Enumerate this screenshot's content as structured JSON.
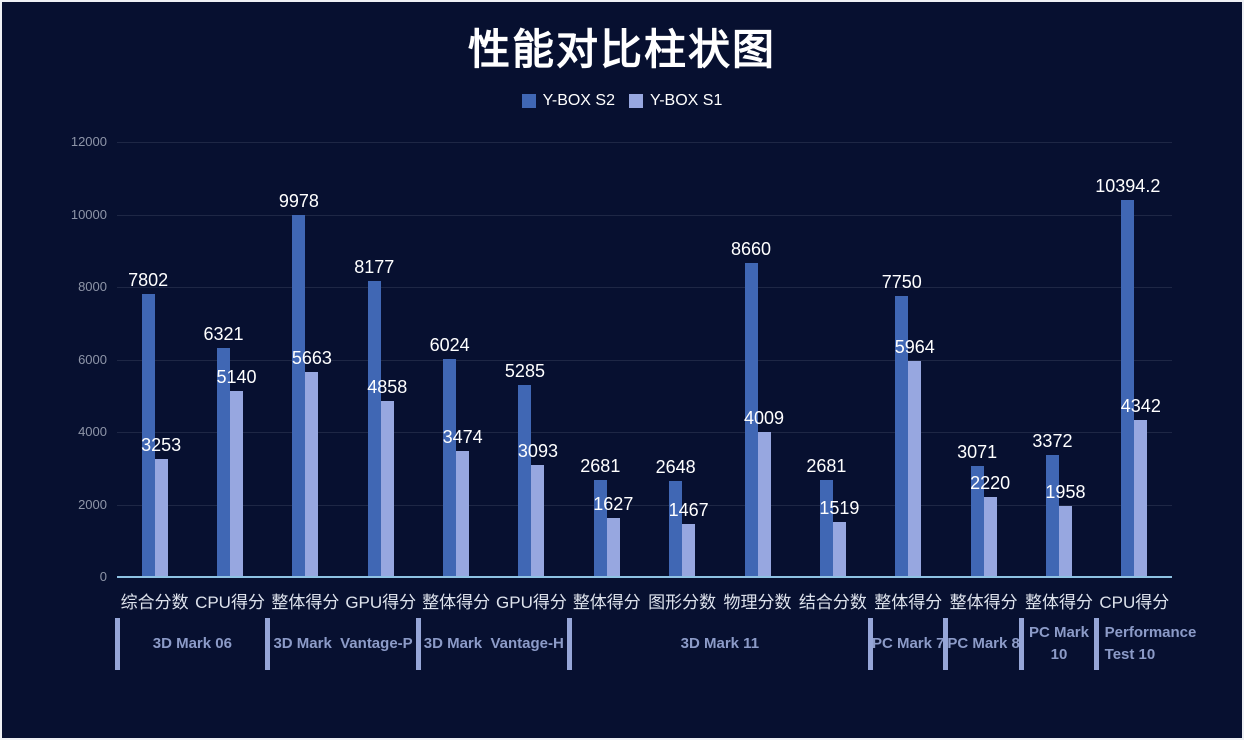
{
  "title": "性能对比柱状图",
  "colors": {
    "background": "#071030",
    "frame": "#eef0f4",
    "gridline": "#1e2745",
    "baseline": "#8ec2e3",
    "y_tick_text": "#8e95a8",
    "category_text": "#dde2ec",
    "group_text": "#8c9bc8",
    "value_text": "#ffffff",
    "series_s2": "#4067b4",
    "series_s1": "#97a7e0"
  },
  "chart_data": {
    "type": "bar",
    "title": "性能对比柱状图",
    "legend_position": "top",
    "grid": true,
    "xlabel": "",
    "ylabel": "",
    "y_axis": {
      "min": 0,
      "max": 12000,
      "step": 2000,
      "ticks": [
        0,
        2000,
        4000,
        6000,
        8000,
        10000,
        12000
      ]
    },
    "categories": [
      "综合分数",
      "CPU得分",
      "整体得分",
      "GPU得分",
      "整体得分",
      "GPU得分",
      "整体得分",
      "图形分数",
      "物理分数",
      "结合分数",
      "整体得分",
      "整体得分",
      "整体得分",
      "CPU得分"
    ],
    "series": [
      {
        "name": "Y-BOX S2",
        "color": "#4067b4",
        "values": [
          7802,
          6321,
          9978,
          8177,
          6024,
          5285,
          2681,
          2648,
          8660,
          2681,
          7750,
          3071,
          3372,
          10394.2
        ]
      },
      {
        "name": "Y-BOX S1",
        "color": "#97a7e0",
        "values": [
          3253,
          5140,
          5663,
          4858,
          3474,
          3093,
          1627,
          1467,
          4009,
          1519,
          5964,
          2220,
          1958,
          4342
        ]
      }
    ],
    "groups": [
      {
        "label": "3D Mark 06",
        "span": 2
      },
      {
        "label": "3D Mark  Vantage-P",
        "span": 2
      },
      {
        "label": "3D Mark  Vantage-H",
        "span": 2
      },
      {
        "label": "3D Mark 11",
        "span": 4
      },
      {
        "label": "PC Mark 7",
        "span": 1
      },
      {
        "label": "PC Mark 8",
        "span": 1
      },
      {
        "label": "PC Mark 10",
        "span": 1
      },
      {
        "label": "Performance Test 10",
        "span": 1
      }
    ]
  }
}
